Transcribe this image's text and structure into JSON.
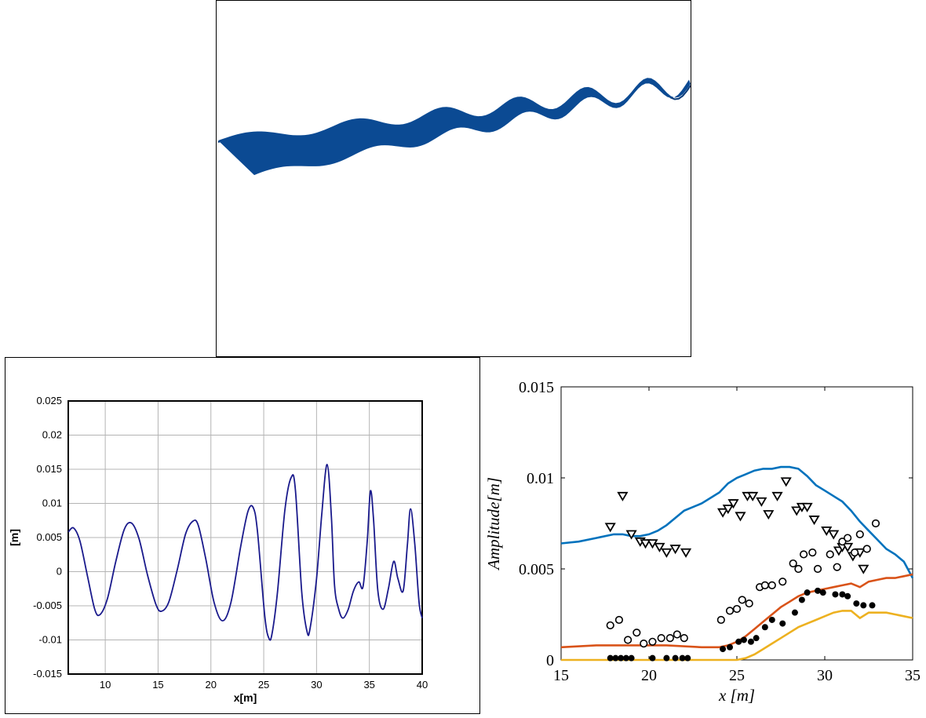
{
  "colors": {
    "surface": "#0b4a93",
    "surface_dark": "#083a78",
    "profile_line": "#1a1a8c",
    "series_blue": "#0072bd",
    "series_orange": "#d95319",
    "series_yellow": "#edb120",
    "grid": "#b4b4b4"
  },
  "chart_data": [
    {
      "type": "surface",
      "title": "",
      "description_visible": "3D free-surface render"
    },
    {
      "type": "line",
      "title": "",
      "xlabel": "x[m]",
      "ylabel": "[m]",
      "xlim": [
        6.5,
        40
      ],
      "ylim": [
        -0.015,
        0.025
      ],
      "grid": true,
      "x_ticks": [
        "10",
        "15",
        "20",
        "25",
        "30",
        "35",
        "40"
      ],
      "y_ticks": [
        "-0.015",
        "-0.01",
        "-0.005",
        "0",
        "0.005",
        "0.01",
        "0.015",
        "0.02",
        "0.025"
      ],
      "series": [
        {
          "x": [
            6.5,
            7.0,
            7.6,
            8.3,
            9.0,
            9.5,
            10.2,
            11.0,
            11.8,
            12.5,
            13.2,
            14.0,
            14.8,
            15.3,
            16.0,
            16.8,
            17.6,
            18.3,
            18.8,
            19.5,
            20.3,
            21.1,
            21.9,
            22.8,
            23.5,
            24.0,
            24.4,
            25.1,
            25.5,
            25.8,
            26.3,
            27.0,
            27.6,
            28.0,
            28.6,
            29.1,
            29.4,
            30.0,
            30.5,
            31.0,
            31.4,
            31.7,
            32.1,
            32.5,
            33.0,
            33.5,
            34.0,
            34.4,
            34.8,
            35.1,
            35.4,
            35.8,
            36.3,
            36.8,
            37.3,
            37.7,
            38.2,
            38.6,
            38.9,
            39.3,
            39.7,
            40.0
          ],
          "y": [
            0.0058,
            0.0064,
            0.0045,
            -0.0005,
            -0.0055,
            -0.0063,
            -0.004,
            0.0015,
            0.0062,
            0.0071,
            0.0048,
            -0.0005,
            -0.0048,
            -0.0058,
            -0.0045,
            0.0002,
            0.0055,
            0.0074,
            0.0068,
            0.002,
            -0.0045,
            -0.0072,
            -0.0045,
            0.0035,
            0.0088,
            0.0094,
            0.006,
            -0.0065,
            -0.0098,
            -0.009,
            -0.003,
            0.009,
            0.0138,
            0.012,
            -0.003,
            -0.0088,
            -0.0082,
            -0.001,
            0.0085,
            0.0157,
            0.0082,
            -0.002,
            -0.0055,
            -0.0068,
            -0.0055,
            -0.0028,
            -0.0015,
            -0.0022,
            0.0045,
            0.0118,
            0.0075,
            -0.0028,
            -0.0055,
            -0.0025,
            0.0015,
            -0.001,
            -0.0028,
            0.004,
            0.0092,
            0.004,
            -0.0045,
            -0.0068
          ]
        }
      ]
    },
    {
      "type": "scatter",
      "title": "",
      "xlabel": "x [m]",
      "ylabel": "Amplitude[m]",
      "xlim": [
        15,
        35
      ],
      "ylim": [
        0,
        0.015
      ],
      "grid": false,
      "x_ticks": [
        "15",
        "20",
        "25",
        "30",
        "35"
      ],
      "y_ticks": [
        "0",
        "0.005",
        "0.01",
        "0.015"
      ],
      "lines": [
        {
          "color_key": "series_blue",
          "x": [
            15,
            16,
            17,
            18,
            18.5,
            19,
            19.5,
            20,
            20.5,
            21,
            22,
            23,
            24,
            24.5,
            25,
            25.5,
            26,
            26.5,
            27,
            27.5,
            28,
            28.5,
            29,
            29.5,
            30,
            30.5,
            31,
            31.5,
            32,
            32.5,
            33,
            33.5,
            34,
            34.5,
            35
          ],
          "y": [
            0.0064,
            0.0065,
            0.0067,
            0.0069,
            0.0069,
            0.0068,
            0.0068,
            0.0069,
            0.0071,
            0.0074,
            0.0082,
            0.0086,
            0.0092,
            0.0097,
            0.01,
            0.0102,
            0.0104,
            0.0105,
            0.0105,
            0.0106,
            0.0106,
            0.0105,
            0.0101,
            0.0096,
            0.0093,
            0.009,
            0.0087,
            0.0082,
            0.0076,
            0.0071,
            0.0066,
            0.0061,
            0.0058,
            0.0054,
            0.0045
          ]
        },
        {
          "color_key": "series_orange",
          "x": [
            15,
            17,
            19,
            21,
            23,
            24,
            24.5,
            25,
            25.5,
            26,
            26.5,
            27,
            27.5,
            28,
            28.5,
            29,
            29.5,
            30,
            30.5,
            31,
            31.5,
            32,
            32.5,
            33,
            33.5,
            34,
            34.5,
            35
          ],
          "y": [
            0.0007,
            0.0008,
            0.0008,
            0.0008,
            0.0007,
            0.0007,
            0.0008,
            0.001,
            0.0013,
            0.0017,
            0.0021,
            0.0025,
            0.0029,
            0.0032,
            0.0035,
            0.0037,
            0.0038,
            0.0039,
            0.004,
            0.0041,
            0.0042,
            0.004,
            0.0043,
            0.0044,
            0.0045,
            0.0045,
            0.0046,
            0.0047
          ]
        },
        {
          "color_key": "series_yellow",
          "x": [
            15,
            18,
            21,
            24,
            25,
            25.5,
            26,
            26.5,
            27,
            27.5,
            28,
            28.5,
            29,
            29.5,
            30,
            30.5,
            31,
            31.5,
            32,
            32.5,
            33,
            33.5,
            34,
            34.5,
            35
          ],
          "y": [
            0,
            0,
            0,
            0,
            0,
            0.0001,
            0.0003,
            0.0006,
            0.0009,
            0.0012,
            0.0015,
            0.0018,
            0.002,
            0.0022,
            0.0024,
            0.0026,
            0.0027,
            0.0027,
            0.0023,
            0.0026,
            0.0026,
            0.0026,
            0.0025,
            0.0024,
            0.0023
          ]
        }
      ],
      "markers": [
        {
          "shape": "triangle-down",
          "x": [
            17.8,
            18.5,
            19.0,
            19.5,
            19.8,
            20.2,
            20.6,
            21.0,
            21.5,
            22.1,
            24.2,
            24.5,
            24.8,
            25.2,
            25.6,
            25.9,
            26.4,
            26.8,
            27.3,
            27.8,
            28.4,
            28.7,
            29.0,
            29.4,
            30.1,
            30.5,
            30.8,
            31.0,
            31.3,
            31.6,
            32.0,
            32.2
          ],
          "y": [
            0.0073,
            0.009,
            0.0069,
            0.0065,
            0.0064,
            0.0064,
            0.0062,
            0.0059,
            0.0061,
            0.0059,
            0.0081,
            0.0083,
            0.0086,
            0.0079,
            0.009,
            0.009,
            0.0087,
            0.008,
            0.009,
            0.0098,
            0.0082,
            0.0084,
            0.0084,
            0.0077,
            0.0071,
            0.0069,
            0.006,
            0.0062,
            0.0062,
            0.0057,
            0.0059,
            0.005
          ]
        },
        {
          "shape": "circle-open",
          "x": [
            17.8,
            18.3,
            18.8,
            19.3,
            19.7,
            20.2,
            20.7,
            21.2,
            21.6,
            22.0,
            24.1,
            24.6,
            25.0,
            25.3,
            25.7,
            26.3,
            26.6,
            27.0,
            27.6,
            28.2,
            28.5,
            28.8,
            29.3,
            29.6,
            30.3,
            30.7,
            31.0,
            31.3,
            31.7,
            32.0,
            32.4,
            32.9
          ],
          "y": [
            0.0019,
            0.0022,
            0.0011,
            0.0015,
            0.0009,
            0.001,
            0.0012,
            0.0012,
            0.0014,
            0.0012,
            0.0022,
            0.0027,
            0.0028,
            0.0033,
            0.0031,
            0.004,
            0.0041,
            0.0041,
            0.0043,
            0.0053,
            0.005,
            0.0058,
            0.0059,
            0.005,
            0.0058,
            0.0051,
            0.0065,
            0.0067,
            0.0059,
            0.0069,
            0.0061,
            0.0075
          ]
        },
        {
          "shape": "circle-filled",
          "x": [
            17.8,
            18.1,
            18.4,
            18.7,
            19.0,
            20.2,
            21.0,
            21.5,
            21.9,
            22.2,
            24.2,
            24.6,
            25.1,
            25.4,
            25.8,
            26.1,
            26.6,
            27.0,
            27.6,
            28.3,
            28.7,
            29.0,
            29.6,
            29.9,
            30.6,
            31.0,
            31.3,
            31.8,
            32.2,
            32.7
          ],
          "y": [
            0.0001,
            0.0001,
            0.0001,
            0.0001,
            0.0001,
            0.0001,
            0.0001,
            0.0001,
            0.0001,
            0.0001,
            0.0006,
            0.0007,
            0.001,
            0.0011,
            0.001,
            0.0012,
            0.0018,
            0.0022,
            0.002,
            0.0026,
            0.0033,
            0.0037,
            0.0038,
            0.0037,
            0.0036,
            0.0036,
            0.0035,
            0.0031,
            0.003,
            0.003
          ]
        }
      ]
    }
  ]
}
